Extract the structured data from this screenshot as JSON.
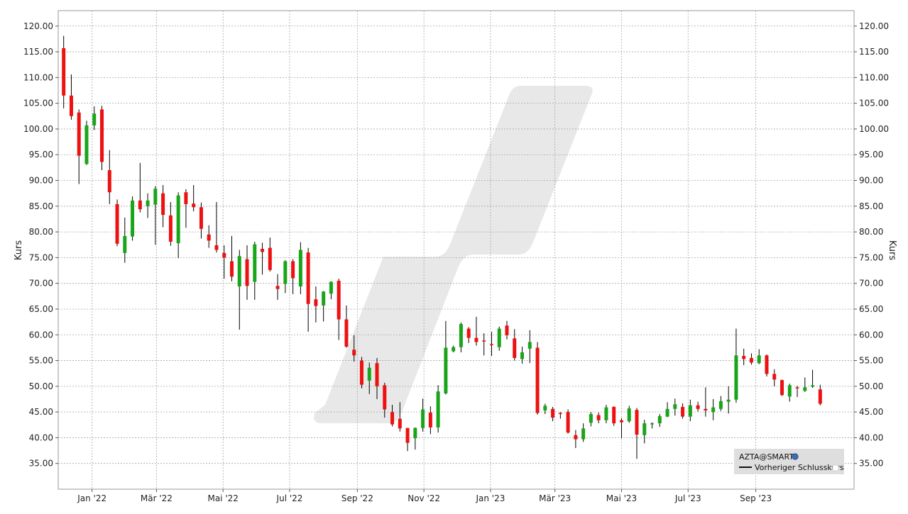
{
  "chart_data": {
    "type": "candlestick",
    "ylabel": "Kurs",
    "ylabel_right": "Kurs",
    "ylim": [
      30.0,
      123.0
    ],
    "ytick_values": [
      35,
      40,
      45,
      50,
      55,
      60,
      65,
      70,
      75,
      80,
      85,
      90,
      95,
      100,
      105,
      110,
      115,
      120
    ],
    "ytick_labels": [
      "35.00",
      "40.00",
      "45.00",
      "50.00",
      "55.00",
      "60.00",
      "65.00",
      "70.00",
      "75.00",
      "80.00",
      "85.00",
      "90.00",
      "95.00",
      "100.00",
      "105.00",
      "110.00",
      "115.00",
      "120.00"
    ],
    "x_range": [
      "2021-12-01",
      "2023-11-30"
    ],
    "x_ticks": [
      {
        "date": "2022-01-01",
        "label": "Jan '22"
      },
      {
        "date": "2022-03-01",
        "label": "Mär '22"
      },
      {
        "date": "2022-05-01",
        "label": "Mai '22"
      },
      {
        "date": "2022-07-01",
        "label": "Jul '22"
      },
      {
        "date": "2022-09-01",
        "label": "Sep '22"
      },
      {
        "date": "2022-11-01",
        "label": "Nov '22"
      },
      {
        "date": "2023-01-01",
        "label": "Jan '23"
      },
      {
        "date": "2023-03-01",
        "label": "Mär '23"
      },
      {
        "date": "2023-05-01",
        "label": "Mai '23"
      },
      {
        "date": "2023-07-01",
        "label": "Jul '23"
      },
      {
        "date": "2023-09-01",
        "label": "Sep '23"
      }
    ],
    "grid": true,
    "legend": {
      "position": "bottom-right",
      "entries": [
        "AZTA@SMART",
        "Vorheriger Schlusskurs"
      ]
    },
    "colors": {
      "up": "#19a519",
      "down": "#ee1111",
      "wick": "#000000",
      "grid": "#a6a6a6",
      "watermark": "#e8e8e8",
      "legend_bg": "#dedede"
    },
    "series": [
      {
        "values": [
          {
            "date": "2021-12-06",
            "open": 115.7,
            "high": 118.1,
            "low": 104.0,
            "close": 106.5
          },
          {
            "date": "2021-12-13",
            "open": 106.5,
            "high": 110.6,
            "low": 101.8,
            "close": 102.5
          },
          {
            "date": "2021-12-20",
            "open": 103.2,
            "high": 103.8,
            "low": 89.3,
            "close": 94.8
          },
          {
            "date": "2021-12-27",
            "open": 93.2,
            "high": 101.6,
            "low": 93.0,
            "close": 100.7
          },
          {
            "date": "2022-01-03",
            "open": 100.7,
            "high": 104.4,
            "low": 99.8,
            "close": 103.0
          },
          {
            "date": "2022-01-10",
            "open": 103.8,
            "high": 104.5,
            "low": 92.0,
            "close": 93.6
          },
          {
            "date": "2022-01-17",
            "open": 92.0,
            "high": 95.9,
            "low": 85.4,
            "close": 87.7
          },
          {
            "date": "2022-01-24",
            "open": 85.4,
            "high": 86.3,
            "low": 77.2,
            "close": 77.7
          },
          {
            "date": "2022-01-31",
            "open": 75.9,
            "high": 82.8,
            "low": 74.0,
            "close": 79.2
          },
          {
            "date": "2022-02-07",
            "open": 79.1,
            "high": 86.9,
            "low": 78.3,
            "close": 86.1
          },
          {
            "date": "2022-02-14",
            "open": 86.1,
            "high": 93.4,
            "low": 83.8,
            "close": 84.4
          },
          {
            "date": "2022-02-21",
            "open": 85.0,
            "high": 87.5,
            "low": 82.7,
            "close": 86.1
          },
          {
            "date": "2022-02-28",
            "open": 85.3,
            "high": 88.9,
            "low": 77.5,
            "close": 88.4
          },
          {
            "date": "2022-03-07",
            "open": 87.5,
            "high": 89.1,
            "low": 80.9,
            "close": 83.3
          },
          {
            "date": "2022-03-14",
            "open": 83.2,
            "high": 85.8,
            "low": 77.3,
            "close": 78.1
          },
          {
            "date": "2022-03-21",
            "open": 77.8,
            "high": 87.7,
            "low": 74.9,
            "close": 87.1
          },
          {
            "date": "2022-03-28",
            "open": 87.7,
            "high": 88.3,
            "low": 80.8,
            "close": 85.4
          },
          {
            "date": "2022-04-04",
            "open": 85.5,
            "high": 89.1,
            "low": 84.0,
            "close": 84.8
          },
          {
            "date": "2022-04-11",
            "open": 84.8,
            "high": 85.7,
            "low": 78.7,
            "close": 80.6
          },
          {
            "date": "2022-04-18",
            "open": 79.5,
            "high": 81.3,
            "low": 76.9,
            "close": 78.3
          },
          {
            "date": "2022-04-25",
            "open": 77.4,
            "high": 85.8,
            "low": 76.0,
            "close": 76.5
          },
          {
            "date": "2022-05-02",
            "open": 75.9,
            "high": 77.4,
            "low": 70.9,
            "close": 75.0
          },
          {
            "date": "2022-05-09",
            "open": 74.3,
            "high": 79.2,
            "low": 70.4,
            "close": 71.3
          },
          {
            "date": "2022-05-16",
            "open": 69.4,
            "high": 76.5,
            "low": 61.0,
            "close": 75.3
          },
          {
            "date": "2022-05-23",
            "open": 74.7,
            "high": 77.4,
            "low": 66.8,
            "close": 69.5
          },
          {
            "date": "2022-05-30",
            "open": 70.3,
            "high": 78.1,
            "low": 66.8,
            "close": 77.6
          },
          {
            "date": "2022-06-06",
            "open": 76.7,
            "high": 77.9,
            "low": 71.7,
            "close": 76.1
          },
          {
            "date": "2022-06-13",
            "open": 76.9,
            "high": 78.9,
            "low": 72.3,
            "close": 72.6
          },
          {
            "date": "2022-06-20",
            "open": 69.5,
            "high": 71.8,
            "low": 66.8,
            "close": 68.9
          },
          {
            "date": "2022-06-27",
            "open": 69.9,
            "high": 74.5,
            "low": 68.1,
            "close": 74.3
          },
          {
            "date": "2022-07-04",
            "open": 74.3,
            "high": 74.7,
            "low": 67.9,
            "close": 71.0
          },
          {
            "date": "2022-07-11",
            "open": 69.4,
            "high": 78.0,
            "low": 67.9,
            "close": 76.5
          },
          {
            "date": "2022-07-18",
            "open": 76.0,
            "high": 76.9,
            "low": 60.6,
            "close": 66.0
          },
          {
            "date": "2022-07-25",
            "open": 66.9,
            "high": 69.4,
            "low": 62.4,
            "close": 65.6
          },
          {
            "date": "2022-08-01",
            "open": 65.7,
            "high": 68.5,
            "low": 62.6,
            "close": 68.4
          },
          {
            "date": "2022-08-08",
            "open": 68.0,
            "high": 70.4,
            "low": 66.9,
            "close": 70.3
          },
          {
            "date": "2022-08-15",
            "open": 70.5,
            "high": 70.9,
            "low": 59.0,
            "close": 63.0
          },
          {
            "date": "2022-08-22",
            "open": 63.0,
            "high": 65.7,
            "low": 57.5,
            "close": 57.7
          },
          {
            "date": "2022-08-29",
            "open": 57.1,
            "high": 59.9,
            "low": 54.8,
            "close": 56.0
          },
          {
            "date": "2022-09-05",
            "open": 55.0,
            "high": 55.7,
            "low": 49.6,
            "close": 50.3
          },
          {
            "date": "2022-09-12",
            "open": 51.1,
            "high": 54.6,
            "low": 48.5,
            "close": 53.6
          },
          {
            "date": "2022-09-19",
            "open": 54.5,
            "high": 55.5,
            "low": 47.5,
            "close": 50.0
          },
          {
            "date": "2022-09-26",
            "open": 50.2,
            "high": 50.7,
            "low": 43.9,
            "close": 45.5
          },
          {
            "date": "2022-10-03",
            "open": 45.0,
            "high": 46.4,
            "low": 42.2,
            "close": 42.6
          },
          {
            "date": "2022-10-10",
            "open": 43.7,
            "high": 46.9,
            "low": 41.2,
            "close": 41.8
          },
          {
            "date": "2022-10-17",
            "open": 41.9,
            "high": 41.9,
            "low": 37.4,
            "close": 39.0
          },
          {
            "date": "2022-10-24",
            "open": 39.9,
            "high": 42.0,
            "low": 37.7,
            "close": 41.9
          },
          {
            "date": "2022-10-31",
            "open": 41.9,
            "high": 47.6,
            "low": 41.2,
            "close": 45.5
          },
          {
            "date": "2022-11-07",
            "open": 44.9,
            "high": 46.1,
            "low": 40.7,
            "close": 42.0
          },
          {
            "date": "2022-11-14",
            "open": 42.0,
            "high": 50.2,
            "low": 41.0,
            "close": 49.0
          },
          {
            "date": "2022-11-21",
            "open": 48.6,
            "high": 62.7,
            "low": 48.4,
            "close": 57.5
          },
          {
            "date": "2022-11-28",
            "open": 56.8,
            "high": 57.9,
            "low": 56.6,
            "close": 57.6
          },
          {
            "date": "2022-12-05",
            "open": 57.6,
            "high": 62.4,
            "low": 56.6,
            "close": 62.1
          },
          {
            "date": "2022-12-12",
            "open": 61.2,
            "high": 61.5,
            "low": 58.4,
            "close": 59.4
          },
          {
            "date": "2022-12-19",
            "open": 59.4,
            "high": 63.5,
            "low": 57.9,
            "close": 58.6
          },
          {
            "date": "2022-12-26",
            "open": 58.9,
            "high": 60.3,
            "low": 56.0,
            "close": 58.7
          },
          {
            "date": "2023-01-02",
            "open": 58.2,
            "high": 60.6,
            "low": 55.9,
            "close": 58.0
          },
          {
            "date": "2023-01-09",
            "open": 57.6,
            "high": 61.6,
            "low": 56.9,
            "close": 61.2
          },
          {
            "date": "2023-01-16",
            "open": 61.8,
            "high": 62.7,
            "low": 59.1,
            "close": 59.9
          },
          {
            "date": "2023-01-23",
            "open": 59.3,
            "high": 61.1,
            "low": 55.0,
            "close": 55.5
          },
          {
            "date": "2023-01-30",
            "open": 55.3,
            "high": 57.7,
            "low": 54.4,
            "close": 56.6
          },
          {
            "date": "2023-02-06",
            "open": 57.3,
            "high": 60.9,
            "low": 54.5,
            "close": 58.6
          },
          {
            "date": "2023-02-13",
            "open": 57.5,
            "high": 58.6,
            "low": 44.5,
            "close": 44.8
          },
          {
            "date": "2023-02-20",
            "open": 45.3,
            "high": 46.6,
            "low": 44.6,
            "close": 46.2
          },
          {
            "date": "2023-02-27",
            "open": 45.6,
            "high": 46.0,
            "low": 43.2,
            "close": 43.9
          },
          {
            "date": "2023-03-06",
            "open": 44.8,
            "high": 45.0,
            "low": 43.7,
            "close": 44.6
          },
          {
            "date": "2023-03-13",
            "open": 45.0,
            "high": 45.5,
            "low": 40.8,
            "close": 41.0
          },
          {
            "date": "2023-03-20",
            "open": 40.5,
            "high": 41.5,
            "low": 38.0,
            "close": 39.7
          },
          {
            "date": "2023-03-27",
            "open": 39.7,
            "high": 42.8,
            "low": 39.2,
            "close": 41.8
          },
          {
            "date": "2023-04-03",
            "open": 42.9,
            "high": 45.0,
            "low": 42.2,
            "close": 44.6
          },
          {
            "date": "2023-04-10",
            "open": 44.4,
            "high": 44.9,
            "low": 42.8,
            "close": 43.4
          },
          {
            "date": "2023-04-17",
            "open": 43.4,
            "high": 46.4,
            "low": 42.8,
            "close": 45.9
          },
          {
            "date": "2023-04-24",
            "open": 46.0,
            "high": 46.1,
            "low": 42.3,
            "close": 42.8
          },
          {
            "date": "2023-05-01",
            "open": 43.4,
            "high": 43.8,
            "low": 39.9,
            "close": 43.0
          },
          {
            "date": "2023-05-08",
            "open": 43.2,
            "high": 46.2,
            "low": 42.9,
            "close": 45.7
          },
          {
            "date": "2023-05-15",
            "open": 45.4,
            "high": 45.8,
            "low": 35.9,
            "close": 40.6
          },
          {
            "date": "2023-05-22",
            "open": 40.5,
            "high": 43.5,
            "low": 38.9,
            "close": 42.8
          },
          {
            "date": "2023-05-29",
            "open": 42.8,
            "high": 43.0,
            "low": 41.8,
            "close": 42.8
          },
          {
            "date": "2023-06-05",
            "open": 42.8,
            "high": 44.6,
            "low": 42.1,
            "close": 44.2
          },
          {
            "date": "2023-06-12",
            "open": 44.1,
            "high": 46.9,
            "low": 44.0,
            "close": 45.6
          },
          {
            "date": "2023-06-19",
            "open": 45.6,
            "high": 47.6,
            "low": 44.3,
            "close": 46.5
          },
          {
            "date": "2023-06-26",
            "open": 46.0,
            "high": 46.7,
            "low": 43.7,
            "close": 44.1
          },
          {
            "date": "2023-07-03",
            "open": 44.1,
            "high": 47.4,
            "low": 43.2,
            "close": 46.3
          },
          {
            "date": "2023-07-10",
            "open": 46.3,
            "high": 47.0,
            "low": 45.1,
            "close": 45.6
          },
          {
            "date": "2023-07-17",
            "open": 45.6,
            "high": 49.8,
            "low": 44.1,
            "close": 45.3
          },
          {
            "date": "2023-07-24",
            "open": 45.0,
            "high": 47.5,
            "low": 43.4,
            "close": 45.9
          },
          {
            "date": "2023-07-31",
            "open": 45.6,
            "high": 48.1,
            "low": 45.2,
            "close": 47.1
          },
          {
            "date": "2023-08-07",
            "open": 47.0,
            "high": 50.0,
            "low": 44.7,
            "close": 47.4
          },
          {
            "date": "2023-08-14",
            "open": 47.4,
            "high": 61.2,
            "low": 46.8,
            "close": 56.0
          },
          {
            "date": "2023-08-21",
            "open": 55.9,
            "high": 57.3,
            "low": 54.1,
            "close": 55.3
          },
          {
            "date": "2023-08-28",
            "open": 55.5,
            "high": 56.4,
            "low": 54.2,
            "close": 54.6
          },
          {
            "date": "2023-09-04",
            "open": 54.5,
            "high": 57.2,
            "low": 54.3,
            "close": 56.0
          },
          {
            "date": "2023-09-11",
            "open": 56.0,
            "high": 56.2,
            "low": 51.9,
            "close": 52.4
          },
          {
            "date": "2023-09-18",
            "open": 52.4,
            "high": 53.3,
            "low": 50.0,
            "close": 51.3
          },
          {
            "date": "2023-09-25",
            "open": 51.2,
            "high": 51.3,
            "low": 48.1,
            "close": 48.3
          },
          {
            "date": "2023-10-02",
            "open": 48.0,
            "high": 50.5,
            "low": 47.0,
            "close": 50.2
          },
          {
            "date": "2023-10-09",
            "open": 49.8,
            "high": 50.1,
            "low": 47.9,
            "close": 49.6
          },
          {
            "date": "2023-10-16",
            "open": 49.1,
            "high": 51.7,
            "low": 48.9,
            "close": 49.8
          },
          {
            "date": "2023-10-23",
            "open": 49.9,
            "high": 53.2,
            "low": 49.7,
            "close": 50.2
          },
          {
            "date": "2023-10-30",
            "open": 49.4,
            "high": 50.3,
            "low": 46.3,
            "close": 46.6
          }
        ]
      }
    ]
  }
}
